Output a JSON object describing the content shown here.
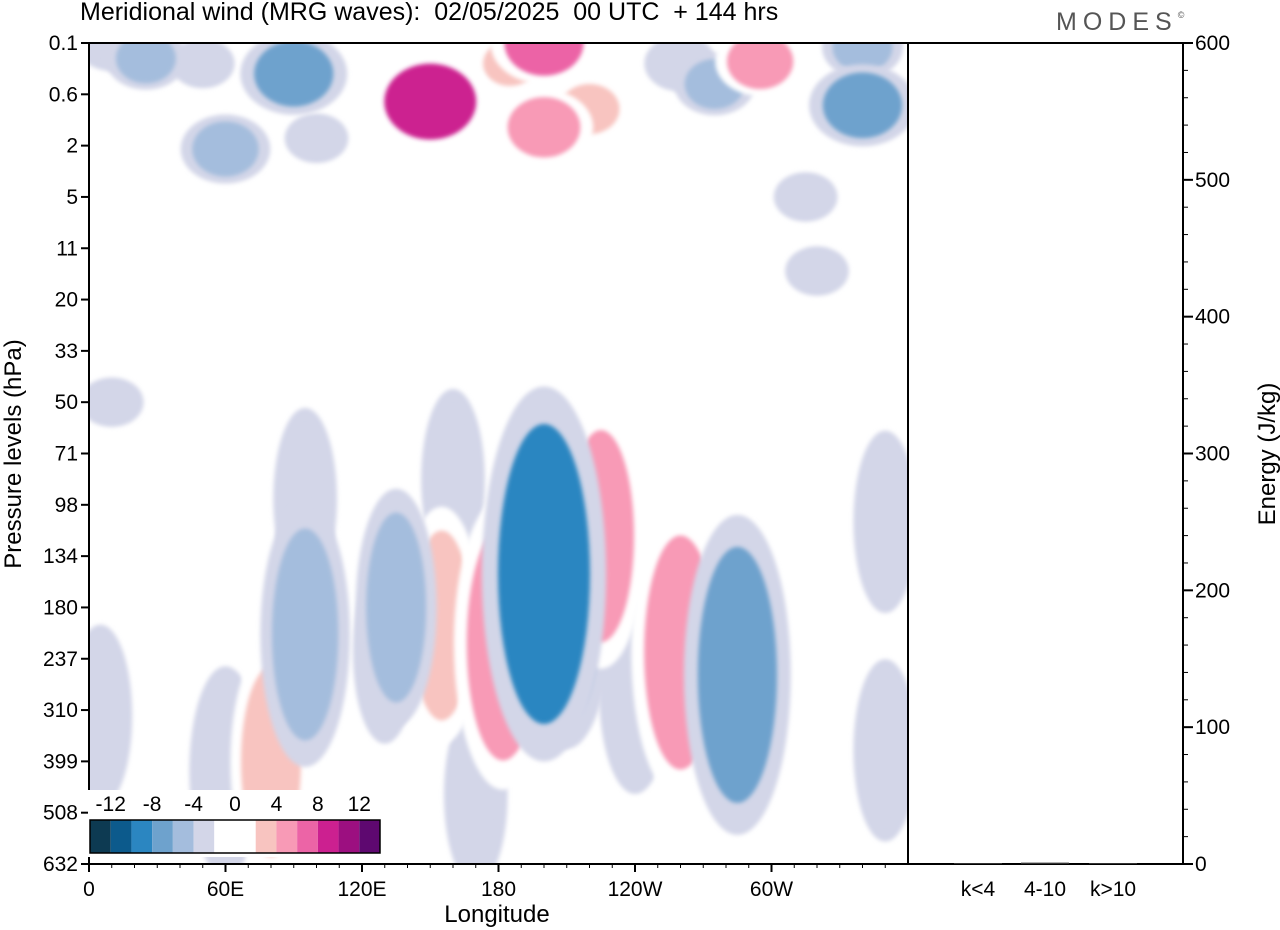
{
  "chart_data": {
    "type": "heatmap",
    "title": "Meridional wind (MRG waves):  02/05/2025  00 UTC  + 144 hrs",
    "brand": "MODES",
    "brand_mark": "©",
    "xlabel": "Longitude",
    "ylabel": "Pressure levels (hPa)",
    "x_ticks": [
      "0",
      "60E",
      "120E",
      "180",
      "120W",
      "60W"
    ],
    "x_tick_degrees": [
      0,
      60,
      120,
      180,
      240,
      300
    ],
    "xlim": [
      0,
      360
    ],
    "y_ticks": [
      "0.1",
      "0.6",
      "2",
      "5",
      "11",
      "20",
      "33",
      "50",
      "71",
      "98",
      "134",
      "180",
      "237",
      "310",
      "399",
      "508",
      "632"
    ],
    "colorbar": {
      "labels": [
        "-12",
        "-8",
        "-4",
        "0",
        "4",
        "8",
        "12"
      ],
      "levels": [
        -14,
        -12,
        -10,
        -8,
        -6,
        -4,
        -2,
        2,
        4,
        6,
        8,
        10,
        12,
        14
      ],
      "colors": [
        "#0d3a52",
        "#0c5a8c",
        "#2b86c1",
        "#6ea2cd",
        "#a4bddd",
        "#d3d6e8",
        "#ffffff",
        "#ffffff",
        "#f8c4c0",
        "#f89ab6",
        "#ec64a6",
        "#cc2090",
        "#9c0f80",
        "#5e0870"
      ]
    },
    "energy_panel": {
      "ylabel": "Energy (J/kg)",
      "ylim": [
        0,
        600
      ],
      "y_ticks": [
        0,
        100,
        200,
        300,
        400,
        500,
        600
      ],
      "categories": [
        "k<4",
        "4-10",
        "k>10"
      ],
      "values": [
        0.4,
        1.0,
        0.2
      ]
    },
    "cells": [
      {
        "lon": 10,
        "lev": 0.1,
        "v": -4
      },
      {
        "lon": 25,
        "lev": 0.25,
        "v": -5
      },
      {
        "lon": 50,
        "lev": 0.3,
        "v": -3
      },
      {
        "lon": 90,
        "lev": 0.4,
        "v": -8
      },
      {
        "lon": 60,
        "lev": 2.2,
        "v": -6
      },
      {
        "lon": 100,
        "lev": 1.8,
        "v": -3
      },
      {
        "lon": 150,
        "lev": 0.8,
        "v": 10
      },
      {
        "lon": 140,
        "lev": 0.6,
        "v": 3
      },
      {
        "lon": 185,
        "lev": 0.3,
        "v": 4
      },
      {
        "lon": 200,
        "lev": 0.1,
        "v": 8
      },
      {
        "lon": 200,
        "lev": 1.5,
        "v": 7
      },
      {
        "lon": 220,
        "lev": 1.0,
        "v": 5
      },
      {
        "lon": 230,
        "lev": 3.8,
        "v": 3
      },
      {
        "lon": 260,
        "lev": 0.3,
        "v": -4
      },
      {
        "lon": 275,
        "lev": 0.5,
        "v": -5
      },
      {
        "lon": 295,
        "lev": 0.28,
        "v": 6
      },
      {
        "lon": 340,
        "lev": 0.14,
        "v": -5
      },
      {
        "lon": 340,
        "lev": 0.9,
        "v": -8
      },
      {
        "lon": 315,
        "lev": 5,
        "v": -3
      },
      {
        "lon": 110,
        "lev": 5,
        "v": 3
      },
      {
        "lon": 15,
        "lev": 12,
        "v": 3
      },
      {
        "lon": 320,
        "lev": 15,
        "v": -3
      },
      {
        "lon": 210,
        "lev": 19,
        "v": 3
      },
      {
        "lon": 35,
        "lev": 36,
        "v": 3
      },
      {
        "lon": 10,
        "lev": 50,
        "v": -3
      },
      {
        "lon": 360,
        "lev": 53,
        "v": 3
      },
      {
        "lon": 50,
        "lev": 90,
        "v": 3
      },
      {
        "lon": 95,
        "lev": 95,
        "v": -3
      },
      {
        "lon": 160,
        "lev": 85,
        "v": -3
      },
      {
        "lon": 190,
        "lev": 450,
        "v": 3
      },
      {
        "lon": 220,
        "lev": 330,
        "v": 3
      },
      {
        "lon": 155,
        "lev": 200,
        "v": 5
      },
      {
        "lon": 155,
        "lev": 180,
        "v": 3
      },
      {
        "lon": 182,
        "lev": 220,
        "v": 7
      },
      {
        "lon": 182,
        "lev": 240,
        "v": 4
      },
      {
        "lon": 200,
        "lev": 150,
        "v": -10
      },
      {
        "lon": 210,
        "lev": 190,
        "v": -6
      },
      {
        "lon": 225,
        "lev": 120,
        "v": 6
      },
      {
        "lon": 235,
        "lev": 270,
        "v": 3
      },
      {
        "lon": 260,
        "lev": 230,
        "v": 7
      },
      {
        "lon": 265,
        "lev": 260,
        "v": 3
      },
      {
        "lon": 285,
        "lev": 260,
        "v": -8
      },
      {
        "lon": 285,
        "lev": 280,
        "v": -4
      },
      {
        "lon": 322,
        "lev": 260,
        "v": 3
      },
      {
        "lon": 300,
        "lev": 130,
        "v": 3
      },
      {
        "lon": 350,
        "lev": 110,
        "v": -3
      },
      {
        "lon": 135,
        "lev": 180,
        "v": -5
      },
      {
        "lon": 130,
        "lev": 230,
        "v": -3
      },
      {
        "lon": 95,
        "lev": 210,
        "v": -6
      },
      {
        "lon": 95,
        "lev": 230,
        "v": -3
      },
      {
        "lon": 80,
        "lev": 400,
        "v": 5
      },
      {
        "lon": 60,
        "lev": 420,
        "v": -4
      },
      {
        "lon": 80,
        "lev": 470,
        "v": 3
      },
      {
        "lon": 160,
        "lev": 550,
        "v": 3
      },
      {
        "lon": 170,
        "lev": 470,
        "v": -3
      },
      {
        "lon": 240,
        "lev": 280,
        "v": -4
      },
      {
        "lon": 5,
        "lev": 320,
        "v": -3
      },
      {
        "lon": 350,
        "lev": 380,
        "v": -3
      },
      {
        "lon": 275,
        "lev": 400,
        "v": 3
      },
      {
        "lon": 45,
        "lev": 170,
        "v": 3
      }
    ]
  }
}
